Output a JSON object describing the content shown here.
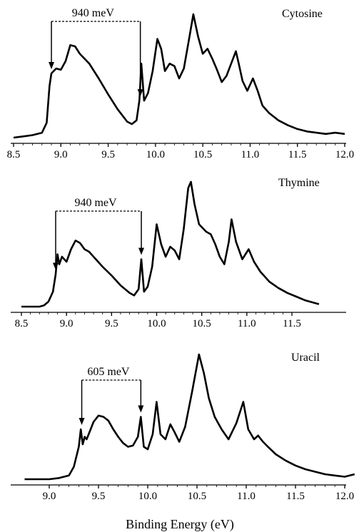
{
  "chart_data": [
    {
      "type": "line",
      "title": "Cytosine",
      "xlabel": "",
      "ylabel": "",
      "xlim": [
        8.5,
        12.0
      ],
      "xticks": [
        "8.5",
        "9.0",
        "9.5",
        "10.0",
        "10.5",
        "11.0",
        "11.5",
        "12.0"
      ],
      "annotation": {
        "label": "940 meV",
        "from": 8.9,
        "to": 9.84
      },
      "series": [
        {
          "x": [
            8.5,
            8.6,
            8.7,
            8.8,
            8.85,
            8.88,
            8.9,
            8.95,
            9.0,
            9.05,
            9.1,
            9.15,
            9.2,
            9.3,
            9.4,
            9.5,
            9.6,
            9.7,
            9.75,
            9.8,
            9.83,
            9.85,
            9.88,
            9.92,
            9.97,
            10.02,
            10.06,
            10.1,
            10.15,
            10.2,
            10.25,
            10.3,
            10.35,
            10.4,
            10.45,
            10.5,
            10.55,
            10.6,
            10.65,
            10.7,
            10.75,
            10.8,
            10.85,
            10.88,
            10.92,
            10.97,
            11.03,
            11.08,
            11.13,
            11.2,
            11.3,
            11.4,
            11.5,
            11.6,
            11.7,
            11.8,
            11.9,
            12.0
          ],
          "y": [
            0.0,
            0.01,
            0.02,
            0.04,
            0.12,
            0.42,
            0.52,
            0.56,
            0.55,
            0.62,
            0.75,
            0.74,
            0.68,
            0.6,
            0.48,
            0.35,
            0.23,
            0.13,
            0.11,
            0.14,
            0.3,
            0.6,
            0.3,
            0.36,
            0.54,
            0.8,
            0.72,
            0.54,
            0.6,
            0.58,
            0.48,
            0.56,
            0.78,
            1.0,
            0.82,
            0.68,
            0.72,
            0.64,
            0.55,
            0.45,
            0.5,
            0.6,
            0.7,
            0.6,
            0.46,
            0.38,
            0.48,
            0.38,
            0.26,
            0.2,
            0.14,
            0.1,
            0.07,
            0.05,
            0.04,
            0.03,
            0.04,
            0.03
          ]
        }
      ]
    },
    {
      "type": "line",
      "title": "Thymine",
      "xlabel": "",
      "ylabel": "",
      "xlim": [
        8.5,
        11.85
      ],
      "xticks": [
        "8.5",
        "9.0",
        "9.5",
        "10.0",
        "10.5",
        "11.0",
        "11.5"
      ],
      "annotation": {
        "label": "940 meV",
        "from": 8.88,
        "to": 9.83
      },
      "series": [
        {
          "x": [
            8.5,
            8.6,
            8.7,
            8.75,
            8.8,
            8.85,
            8.88,
            8.9,
            8.92,
            8.95,
            9.0,
            9.05,
            9.1,
            9.15,
            9.2,
            9.25,
            9.3,
            9.4,
            9.5,
            9.6,
            9.7,
            9.75,
            9.8,
            9.83,
            9.86,
            9.9,
            9.95,
            10.0,
            10.05,
            10.1,
            10.15,
            10.2,
            10.25,
            10.3,
            10.35,
            10.38,
            10.42,
            10.47,
            10.55,
            10.6,
            10.65,
            10.7,
            10.75,
            10.8,
            10.83,
            10.88,
            10.95,
            11.02,
            11.08,
            11.15,
            11.25,
            11.35,
            11.45,
            11.55,
            11.65,
            11.75,
            11.8
          ],
          "y": [
            0.0,
            0.0,
            0.0,
            0.01,
            0.04,
            0.12,
            0.26,
            0.42,
            0.34,
            0.4,
            0.36,
            0.46,
            0.53,
            0.51,
            0.46,
            0.44,
            0.4,
            0.32,
            0.25,
            0.17,
            0.11,
            0.09,
            0.14,
            0.38,
            0.12,
            0.16,
            0.32,
            0.66,
            0.5,
            0.4,
            0.48,
            0.45,
            0.38,
            0.62,
            0.95,
            1.0,
            0.82,
            0.66,
            0.6,
            0.58,
            0.5,
            0.4,
            0.34,
            0.52,
            0.7,
            0.52,
            0.38,
            0.46,
            0.36,
            0.28,
            0.2,
            0.15,
            0.11,
            0.08,
            0.05,
            0.03,
            0.02
          ]
        }
      ]
    },
    {
      "type": "line",
      "title": "Uracil",
      "xlabel": "Binding Energy (eV)",
      "ylabel": "",
      "xlim": [
        8.75,
        12.15
      ],
      "xticks": [
        "9.0",
        "9.5",
        "10.0",
        "10.5",
        "11.0",
        "11.5",
        "12.0"
      ],
      "annotation": {
        "label": "605 meV",
        "from": 9.33,
        "to": 9.93
      },
      "series": [
        {
          "x": [
            8.75,
            9.0,
            9.1,
            9.2,
            9.25,
            9.3,
            9.32,
            9.34,
            9.36,
            9.38,
            9.4,
            9.45,
            9.5,
            9.55,
            9.6,
            9.65,
            9.7,
            9.75,
            9.8,
            9.85,
            9.9,
            9.93,
            9.96,
            10.0,
            10.05,
            10.09,
            10.13,
            10.18,
            10.23,
            10.27,
            10.32,
            10.38,
            10.45,
            10.52,
            10.57,
            10.62,
            10.68,
            10.75,
            10.82,
            10.9,
            10.97,
            11.02,
            11.08,
            11.12,
            11.17,
            11.22,
            11.3,
            11.4,
            11.5,
            11.6,
            11.7,
            11.8,
            11.9,
            12.0,
            12.05,
            12.1
          ],
          "y": [
            0.0,
            0.0,
            0.01,
            0.03,
            0.1,
            0.26,
            0.4,
            0.28,
            0.34,
            0.32,
            0.36,
            0.46,
            0.51,
            0.5,
            0.47,
            0.4,
            0.34,
            0.29,
            0.26,
            0.27,
            0.34,
            0.5,
            0.26,
            0.24,
            0.36,
            0.62,
            0.36,
            0.32,
            0.44,
            0.38,
            0.3,
            0.42,
            0.7,
            1.0,
            0.85,
            0.65,
            0.5,
            0.4,
            0.32,
            0.45,
            0.62,
            0.4,
            0.32,
            0.35,
            0.3,
            0.26,
            0.2,
            0.15,
            0.11,
            0.08,
            0.06,
            0.04,
            0.03,
            0.02,
            0.03,
            0.04
          ]
        }
      ]
    }
  ]
}
